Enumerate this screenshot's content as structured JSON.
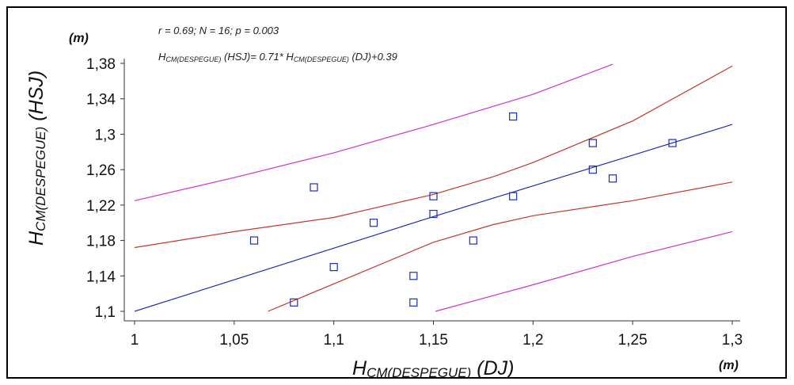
{
  "chart_data": {
    "type": "scatter",
    "annotation_stats": "r = 0.69; N = 16; p = 0.003",
    "equation": {
      "h1": "H",
      "sub1": "CM(DESPEGUE)",
      "paren1": " (HSJ)= 0.71* ",
      "h2": "H",
      "sub2": "CM(DESPEGUE)",
      "tail": " (DJ)+0.39"
    },
    "xlabel": {
      "h": "H",
      "sub": "CM(DESPEGUE)",
      "tail": " (DJ)"
    },
    "ylabel": {
      "h": "H",
      "sub": "CM(DESPEGUE)",
      "tail": " (HSJ)"
    },
    "x_unit": "(m)",
    "y_unit": "(m)",
    "xlim": [
      1.0,
      1.3
    ],
    "ylim": [
      1.1,
      1.38
    ],
    "x_ticks": [
      {
        "v": 1.0,
        "label": "1"
      },
      {
        "v": 1.05,
        "label": "1,05"
      },
      {
        "v": 1.1,
        "label": "1,1"
      },
      {
        "v": 1.15,
        "label": "1,15"
      },
      {
        "v": 1.2,
        "label": "1,2"
      },
      {
        "v": 1.25,
        "label": "1,25"
      },
      {
        "v": 1.3,
        "label": "1,3"
      }
    ],
    "y_ticks": [
      {
        "v": 1.1,
        "label": "1,1"
      },
      {
        "v": 1.14,
        "label": "1,14"
      },
      {
        "v": 1.18,
        "label": "1,18"
      },
      {
        "v": 1.22,
        "label": "1,22"
      },
      {
        "v": 1.26,
        "label": "1,26"
      },
      {
        "v": 1.3,
        "label": "1,3"
      },
      {
        "v": 1.34,
        "label": "1,34"
      },
      {
        "v": 1.38,
        "label": "1,38"
      }
    ],
    "points": [
      {
        "x": 1.06,
        "y": 1.18
      },
      {
        "x": 1.08,
        "y": 1.11
      },
      {
        "x": 1.09,
        "y": 1.24
      },
      {
        "x": 1.1,
        "y": 1.15
      },
      {
        "x": 1.12,
        "y": 1.2
      },
      {
        "x": 1.14,
        "y": 1.14
      },
      {
        "x": 1.14,
        "y": 1.11
      },
      {
        "x": 1.15,
        "y": 1.23
      },
      {
        "x": 1.15,
        "y": 1.21
      },
      {
        "x": 1.17,
        "y": 1.18
      },
      {
        "x": 1.19,
        "y": 1.32
      },
      {
        "x": 1.19,
        "y": 1.23
      },
      {
        "x": 1.23,
        "y": 1.29
      },
      {
        "x": 1.23,
        "y": 1.26
      },
      {
        "x": 1.24,
        "y": 1.25
      },
      {
        "x": 1.27,
        "y": 1.29
      }
    ],
    "lines": [
      {
        "role": "regression",
        "color": "#1f2fb0",
        "points": [
          [
            1.0,
            1.1
          ],
          [
            1.15,
            1.207
          ],
          [
            1.3,
            1.311
          ]
        ]
      },
      {
        "role": "confidence-upper",
        "color": "#c0392b",
        "points": [
          [
            1.0,
            1.172
          ],
          [
            1.05,
            1.19
          ],
          [
            1.1,
            1.206
          ],
          [
            1.15,
            1.232
          ],
          [
            1.18,
            1.252
          ],
          [
            1.2,
            1.268
          ],
          [
            1.25,
            1.315
          ],
          [
            1.3,
            1.377
          ]
        ]
      },
      {
        "role": "confidence-lower",
        "color": "#c0392b",
        "points": [
          [
            1.067,
            1.1
          ],
          [
            1.1,
            1.131
          ],
          [
            1.15,
            1.178
          ],
          [
            1.18,
            1.198
          ],
          [
            1.2,
            1.208
          ],
          [
            1.25,
            1.225
          ],
          [
            1.3,
            1.246
          ]
        ]
      },
      {
        "role": "prediction-upper",
        "color": "#cc33cc",
        "points": [
          [
            1.0,
            1.225
          ],
          [
            1.05,
            1.251
          ],
          [
            1.1,
            1.279
          ],
          [
            1.15,
            1.311
          ],
          [
            1.2,
            1.345
          ],
          [
            1.24,
            1.379
          ]
        ]
      },
      {
        "role": "prediction-lower",
        "color": "#cc33cc",
        "points": [
          [
            1.151,
            1.1
          ],
          [
            1.2,
            1.13
          ],
          [
            1.25,
            1.162
          ],
          [
            1.3,
            1.19
          ]
        ]
      }
    ],
    "point_color": "#1f2fb0",
    "grid": false
  }
}
